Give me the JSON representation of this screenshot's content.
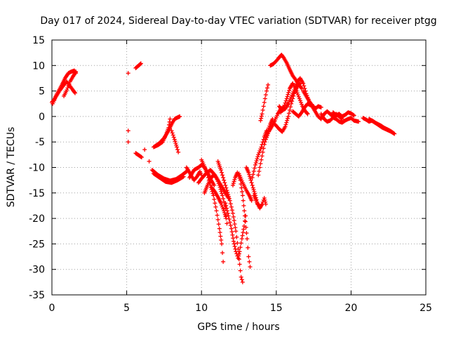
{
  "chart_data": {
    "type": "scatter",
    "title": "Day 017 of 2024, Sidereal Day-to-day VTEC variation (SDTVAR) for receiver ptgg",
    "xlabel": "GPS time / hours",
    "ylabel": "SDTVAR / TECUs",
    "xlim": [
      0,
      25
    ],
    "ylim": [
      -35,
      15
    ],
    "xticks": [
      0,
      5,
      10,
      15,
      20,
      25
    ],
    "yticks": [
      15,
      10,
      5,
      0,
      -5,
      -10,
      -15,
      -20,
      -25,
      -30,
      -35
    ],
    "grid": true,
    "marker": "plus",
    "color": "#ff0000",
    "tracks": [
      [
        [
          0.0,
          2.8
        ],
        [
          0.15,
          3.3
        ],
        [
          0.3,
          4.2
        ],
        [
          0.5,
          5.3
        ],
        [
          0.7,
          6.4
        ],
        [
          0.9,
          7.6
        ],
        [
          1.1,
          8.5
        ],
        [
          1.3,
          8.8
        ],
        [
          1.5,
          9.0
        ],
        [
          1.6,
          8.5
        ]
      ],
      [
        [
          0.05,
          2.5
        ],
        [
          0.25,
          3.8
        ],
        [
          0.5,
          5.0
        ],
        [
          0.8,
          6.2
        ],
        [
          1.0,
          6.8
        ],
        [
          1.2,
          6.0
        ],
        [
          1.4,
          5.2
        ],
        [
          1.55,
          4.6
        ]
      ],
      [
        [
          0.8,
          4.0
        ],
        [
          1.0,
          5.2
        ],
        [
          1.2,
          6.8
        ],
        [
          1.4,
          7.8
        ],
        [
          1.6,
          8.8
        ]
      ],
      [
        [
          5.1,
          8.5
        ]
      ],
      [
        [
          5.1,
          -2.8
        ]
      ],
      [
        [
          5.1,
          -5.0
        ]
      ],
      [
        [
          5.6,
          9.5
        ],
        [
          5.8,
          10.0
        ],
        [
          5.95,
          10.4
        ]
      ],
      [
        [
          5.6,
          -7.2
        ],
        [
          5.8,
          -7.6
        ],
        [
          6.0,
          -8.0
        ]
      ],
      [
        [
          6.2,
          -6.5
        ]
      ],
      [
        [
          6.5,
          -8.8
        ]
      ],
      [
        [
          6.8,
          -6.0
        ],
        [
          7.1,
          -5.6
        ],
        [
          7.4,
          -5.0
        ],
        [
          7.6,
          -3.8
        ],
        [
          7.8,
          -2.2
        ],
        [
          7.9,
          -0.5
        ],
        [
          8.0,
          -2.8
        ],
        [
          8.2,
          -4.5
        ],
        [
          8.35,
          -6.0
        ],
        [
          8.45,
          -7.0
        ]
      ],
      [
        [
          6.9,
          -5.8
        ],
        [
          7.2,
          -5.2
        ],
        [
          7.5,
          -4.2
        ],
        [
          7.8,
          -2.8
        ],
        [
          8.0,
          -1.5
        ],
        [
          8.2,
          -0.5
        ],
        [
          8.4,
          -0.2
        ],
        [
          8.55,
          0.0
        ]
      ],
      [
        [
          6.7,
          -10.5
        ],
        [
          7.1,
          -11.5
        ],
        [
          7.5,
          -12.2
        ],
        [
          7.9,
          -12.6
        ],
        [
          8.3,
          -12.3
        ],
        [
          8.7,
          -11.5
        ],
        [
          9.0,
          -10.8
        ]
      ],
      [
        [
          6.8,
          -11.2
        ],
        [
          7.2,
          -12.0
        ],
        [
          7.6,
          -12.8
        ],
        [
          8.0,
          -13.0
        ],
        [
          8.4,
          -12.5
        ],
        [
          8.8,
          -11.8
        ]
      ],
      [
        [
          9.0,
          -10.0
        ],
        [
          9.3,
          -11.5
        ],
        [
          9.5,
          -12.5
        ],
        [
          9.7,
          -11.8
        ],
        [
          9.9,
          -10.8
        ],
        [
          10.0,
          -11.5
        ]
      ],
      [
        [
          9.2,
          -12.0
        ],
        [
          9.5,
          -10.5
        ],
        [
          9.8,
          -10.0
        ],
        [
          10.0,
          -9.5
        ],
        [
          10.2,
          -10.0
        ],
        [
          10.45,
          -11.2
        ],
        [
          10.65,
          -12.5
        ],
        [
          10.85,
          -13.5
        ]
      ],
      [
        [
          9.8,
          -13.0
        ],
        [
          10.0,
          -12.2
        ],
        [
          10.3,
          -11.2
        ],
        [
          10.6,
          -10.5
        ],
        [
          10.9,
          -11.5
        ],
        [
          11.2,
          -13.0
        ],
        [
          11.5,
          -14.5
        ],
        [
          11.8,
          -16.0
        ]
      ],
      [
        [
          10.0,
          -8.5
        ],
        [
          10.2,
          -9.8
        ],
        [
          10.4,
          -11.5
        ],
        [
          10.6,
          -13.5
        ],
        [
          10.8,
          -15.5
        ],
        [
          11.0,
          -18.5
        ],
        [
          11.2,
          -22.0
        ],
        [
          11.35,
          -25.0
        ],
        [
          11.45,
          -28.5
        ]
      ],
      [
        [
          10.2,
          -15.0
        ],
        [
          10.4,
          -13.5
        ],
        [
          10.6,
          -12.2
        ],
        [
          10.8,
          -11.5
        ],
        [
          11.0,
          -12.0
        ],
        [
          11.2,
          -13.5
        ],
        [
          11.4,
          -15.5
        ],
        [
          11.6,
          -18.0
        ],
        [
          11.7,
          -21.0
        ]
      ],
      [
        [
          10.7,
          -14.0
        ],
        [
          10.9,
          -14.8
        ],
        [
          11.1,
          -15.8
        ],
        [
          11.3,
          -17.0
        ],
        [
          11.5,
          -18.5
        ],
        [
          11.65,
          -20.0
        ]
      ],
      [
        [
          11.1,
          -8.8
        ],
        [
          11.3,
          -10.5
        ],
        [
          11.5,
          -12.5
        ],
        [
          11.7,
          -14.5
        ],
        [
          11.9,
          -16.5
        ],
        [
          12.1,
          -19.0
        ],
        [
          12.3,
          -22.5
        ],
        [
          12.45,
          -26.0
        ],
        [
          12.55,
          -29.0
        ],
        [
          12.65,
          -31.5
        ],
        [
          12.75,
          -32.5
        ]
      ],
      [
        [
          11.6,
          -17.0
        ],
        [
          11.8,
          -19.5
        ],
        [
          12.0,
          -22.0
        ],
        [
          12.15,
          -24.5
        ],
        [
          12.3,
          -26.5
        ],
        [
          12.45,
          -27.8
        ],
        [
          12.55,
          -26.5
        ],
        [
          12.7,
          -24.0
        ],
        [
          12.85,
          -21.5
        ],
        [
          12.95,
          -19.5
        ]
      ],
      [
        [
          12.1,
          -13.5
        ],
        [
          12.25,
          -12.0
        ],
        [
          12.4,
          -11.0
        ],
        [
          12.6,
          -12.5
        ],
        [
          12.75,
          -15.5
        ],
        [
          12.9,
          -19.5
        ],
        [
          13.05,
          -24.0
        ],
        [
          13.15,
          -27.5
        ],
        [
          13.25,
          -29.5
        ]
      ],
      [
        [
          12.5,
          -11.2
        ],
        [
          12.75,
          -13.0
        ],
        [
          13.0,
          -14.5
        ],
        [
          13.2,
          -15.5
        ],
        [
          13.35,
          -16.5
        ]
      ],
      [
        [
          13.0,
          -10.0
        ],
        [
          13.15,
          -11.0
        ],
        [
          13.3,
          -12.5
        ],
        [
          13.45,
          -14.0
        ],
        [
          13.6,
          -15.5
        ],
        [
          13.75,
          -17.2
        ]
      ],
      [
        [
          13.5,
          -15.5
        ],
        [
          13.7,
          -16.8
        ],
        [
          13.9,
          -18.0
        ],
        [
          14.05,
          -17.2
        ],
        [
          14.2,
          -16.0
        ],
        [
          14.3,
          -17.2
        ]
      ],
      [
        [
          13.4,
          -12.0
        ],
        [
          13.6,
          -9.5
        ],
        [
          13.8,
          -7.5
        ],
        [
          14.0,
          -6.0
        ],
        [
          14.2,
          -4.0
        ],
        [
          14.35,
          -2.8
        ]
      ],
      [
        [
          13.8,
          -11.5
        ],
        [
          14.0,
          -8.5
        ],
        [
          14.2,
          -5.5
        ],
        [
          14.4,
          -3.0
        ],
        [
          14.6,
          -1.5
        ],
        [
          14.75,
          -0.5
        ]
      ],
      [
        [
          13.95,
          -0.8
        ],
        [
          14.05,
          0.5
        ],
        [
          14.15,
          2.0
        ],
        [
          14.25,
          3.5
        ],
        [
          14.35,
          5.0
        ],
        [
          14.45,
          6.2
        ]
      ],
      [
        [
          14.3,
          -4.5
        ],
        [
          14.5,
          -3.0
        ],
        [
          14.7,
          -2.0
        ],
        [
          14.9,
          -0.8
        ],
        [
          15.1,
          0.5
        ],
        [
          15.3,
          1.5
        ],
        [
          15.5,
          1.8
        ]
      ],
      [
        [
          14.9,
          -1.5
        ],
        [
          15.2,
          -2.5
        ],
        [
          15.4,
          -3.0
        ],
        [
          15.6,
          -2.0
        ],
        [
          15.8,
          0.0
        ],
        [
          16.0,
          2.5
        ],
        [
          16.2,
          4.5
        ],
        [
          16.4,
          5.8
        ],
        [
          16.6,
          6.5
        ]
      ],
      [
        [
          14.6,
          10.0
        ],
        [
          14.8,
          10.3
        ],
        [
          15.0,
          10.9
        ],
        [
          15.2,
          11.6
        ],
        [
          15.35,
          12.1
        ],
        [
          15.5,
          11.5
        ],
        [
          15.7,
          10.5
        ],
        [
          15.9,
          9.2
        ],
        [
          16.1,
          8.0
        ],
        [
          16.3,
          7.2
        ],
        [
          16.5,
          6.2
        ],
        [
          16.7,
          5.5
        ]
      ],
      [
        [
          15.2,
          2.0
        ],
        [
          15.4,
          1.2
        ],
        [
          15.6,
          1.5
        ],
        [
          15.8,
          2.5
        ],
        [
          16.0,
          3.8
        ],
        [
          16.2,
          5.2
        ],
        [
          16.4,
          6.8
        ],
        [
          16.6,
          7.5
        ],
        [
          16.8,
          6.5
        ],
        [
          17.0,
          4.5
        ],
        [
          17.2,
          3.0
        ]
      ],
      [
        [
          15.3,
          0.8
        ],
        [
          15.5,
          1.8
        ],
        [
          15.7,
          3.5
        ],
        [
          15.9,
          5.5
        ],
        [
          16.1,
          6.5
        ],
        [
          16.35,
          5.0
        ],
        [
          16.55,
          3.5
        ],
        [
          16.75,
          2.0
        ],
        [
          16.95,
          1.0
        ],
        [
          17.1,
          0.5
        ]
      ],
      [
        [
          16.1,
          1.0
        ],
        [
          16.3,
          0.5
        ],
        [
          16.5,
          0.0
        ],
        [
          16.7,
          0.8
        ],
        [
          16.9,
          1.8
        ],
        [
          17.1,
          2.5
        ],
        [
          17.3,
          2.2
        ],
        [
          17.5,
          2.0
        ]
      ],
      [
        [
          16.8,
          5.0
        ],
        [
          17.0,
          4.0
        ],
        [
          17.2,
          3.0
        ],
        [
          17.4,
          2.2
        ],
        [
          17.6,
          1.5
        ],
        [
          17.8,
          2.0
        ],
        [
          18.0,
          1.8
        ]
      ],
      [
        [
          17.4,
          2.0
        ],
        [
          17.6,
          1.0
        ],
        [
          17.8,
          0.0
        ],
        [
          18.0,
          -0.5
        ],
        [
          18.2,
          0.5
        ],
        [
          18.4,
          1.0
        ],
        [
          18.6,
          0.5
        ],
        [
          18.8,
          0.0
        ],
        [
          19.0,
          0.5
        ],
        [
          19.2,
          0.0
        ],
        [
          19.4,
          -0.5
        ]
      ],
      [
        [
          18.0,
          0.5
        ],
        [
          18.2,
          -0.5
        ],
        [
          18.4,
          -1.0
        ],
        [
          18.6,
          -0.8
        ],
        [
          18.8,
          -0.2
        ],
        [
          19.0,
          -0.5
        ],
        [
          19.2,
          -1.0
        ],
        [
          19.4,
          -1.2
        ],
        [
          19.6,
          -0.8
        ],
        [
          19.8,
          -0.5
        ],
        [
          20.0,
          -0.3
        ],
        [
          20.2,
          -0.8
        ],
        [
          20.5,
          -1.0
        ]
      ],
      [
        [
          18.8,
          0.8
        ],
        [
          19.0,
          0.2
        ],
        [
          19.2,
          0.5
        ],
        [
          19.4,
          0.0
        ],
        [
          19.6,
          0.3
        ],
        [
          19.8,
          0.8
        ],
        [
          20.0,
          0.6
        ],
        [
          20.2,
          0.2
        ]
      ],
      [
        [
          20.8,
          -0.3
        ],
        [
          21.0,
          -0.6
        ],
        [
          21.2,
          -1.0
        ],
        [
          21.4,
          -0.8
        ],
        [
          21.6,
          -1.2
        ],
        [
          21.8,
          -1.5
        ],
        [
          22.0,
          -1.8
        ],
        [
          22.2,
          -2.2
        ],
        [
          22.4,
          -2.5
        ],
        [
          22.6,
          -2.8
        ],
        [
          22.8,
          -3.2
        ]
      ],
      [
        [
          21.2,
          -0.5
        ],
        [
          21.5,
          -1.0
        ],
        [
          21.8,
          -1.6
        ],
        [
          22.1,
          -2.2
        ],
        [
          22.4,
          -2.6
        ],
        [
          22.7,
          -3.0
        ],
        [
          22.9,
          -3.4
        ]
      ]
    ]
  }
}
